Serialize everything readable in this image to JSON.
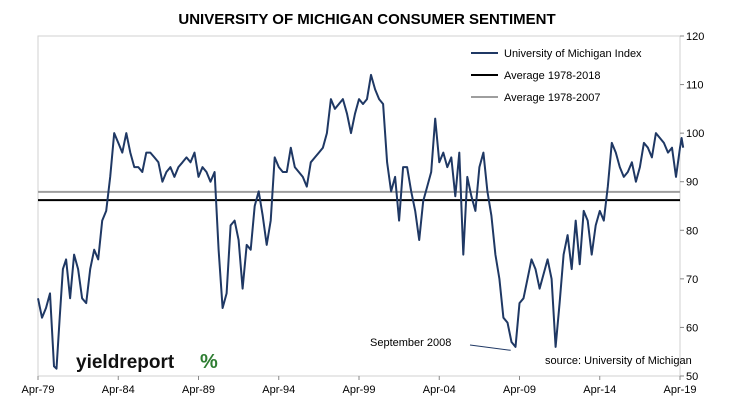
{
  "chart_data": {
    "type": "line",
    "title": "UNIVERSITY OF MICHIGAN CONSUMER SENTIMENT",
    "x_tick_labels": [
      "Apr-79",
      "Apr-84",
      "Apr-89",
      "Apr-94",
      "Apr-99",
      "Apr-04",
      "Apr-09",
      "Apr-14",
      "Apr-19"
    ],
    "x_tick_years": [
      1979.25,
      1984.25,
      1989.25,
      1994.25,
      1999.25,
      2004.25,
      2009.25,
      2014.25,
      2019.25
    ],
    "xlim": [
      1979.25,
      2019.25
    ],
    "ylim": [
      50,
      120
    ],
    "y_ticks": [
      50,
      60,
      70,
      80,
      90,
      100,
      110,
      120
    ],
    "y_axis_side": "right",
    "grid": false,
    "legend_placement": "top-right",
    "series": [
      {
        "name": "University of Michigan Index",
        "color": "#1f3864",
        "style": "line",
        "points": [
          [
            1979.25,
            66
          ],
          [
            1979.5,
            62
          ],
          [
            1979.75,
            64
          ],
          [
            1980.0,
            67
          ],
          [
            1980.25,
            52
          ],
          [
            1980.4,
            51.5
          ],
          [
            1980.6,
            62
          ],
          [
            1980.8,
            72
          ],
          [
            1981.0,
            74
          ],
          [
            1981.25,
            66
          ],
          [
            1981.5,
            75
          ],
          [
            1981.75,
            72
          ],
          [
            1982.0,
            66
          ],
          [
            1982.25,
            65
          ],
          [
            1982.5,
            72
          ],
          [
            1982.75,
            76
          ],
          [
            1983.0,
            74
          ],
          [
            1983.25,
            82
          ],
          [
            1983.5,
            84
          ],
          [
            1983.75,
            91
          ],
          [
            1984.0,
            100
          ],
          [
            1984.25,
            98
          ],
          [
            1984.5,
            96
          ],
          [
            1984.75,
            100
          ],
          [
            1985.0,
            96
          ],
          [
            1985.25,
            93
          ],
          [
            1985.5,
            93
          ],
          [
            1985.75,
            92
          ],
          [
            1986.0,
            96
          ],
          [
            1986.25,
            96
          ],
          [
            1986.5,
            95
          ],
          [
            1986.75,
            94
          ],
          [
            1987.0,
            90
          ],
          [
            1987.25,
            92
          ],
          [
            1987.5,
            93
          ],
          [
            1987.75,
            91
          ],
          [
            1988.0,
            93
          ],
          [
            1988.25,
            94
          ],
          [
            1988.5,
            95
          ],
          [
            1988.75,
            94
          ],
          [
            1989.0,
            96
          ],
          [
            1989.25,
            91
          ],
          [
            1989.5,
            93
          ],
          [
            1989.75,
            92
          ],
          [
            1990.0,
            90
          ],
          [
            1990.25,
            92
          ],
          [
            1990.5,
            76
          ],
          [
            1990.75,
            64
          ],
          [
            1991.0,
            67
          ],
          [
            1991.25,
            81
          ],
          [
            1991.5,
            82
          ],
          [
            1991.75,
            78
          ],
          [
            1992.0,
            68
          ],
          [
            1992.25,
            77
          ],
          [
            1992.5,
            76
          ],
          [
            1992.75,
            85
          ],
          [
            1993.0,
            88
          ],
          [
            1993.25,
            83
          ],
          [
            1993.5,
            77
          ],
          [
            1993.75,
            82
          ],
          [
            1994.0,
            95
          ],
          [
            1994.25,
            93
          ],
          [
            1994.5,
            92
          ],
          [
            1994.75,
            92
          ],
          [
            1995.0,
            97
          ],
          [
            1995.25,
            93
          ],
          [
            1995.5,
            92
          ],
          [
            1995.75,
            91
          ],
          [
            1996.0,
            89
          ],
          [
            1996.25,
            94
          ],
          [
            1996.5,
            95
          ],
          [
            1996.75,
            96
          ],
          [
            1997.0,
            97
          ],
          [
            1997.25,
            100
          ],
          [
            1997.5,
            107
          ],
          [
            1997.75,
            105
          ],
          [
            1998.0,
            106
          ],
          [
            1998.25,
            107
          ],
          [
            1998.5,
            104
          ],
          [
            1998.75,
            100
          ],
          [
            1999.0,
            104
          ],
          [
            1999.25,
            107
          ],
          [
            1999.5,
            106
          ],
          [
            1999.75,
            107
          ],
          [
            2000.0,
            112
          ],
          [
            2000.25,
            109
          ],
          [
            2000.5,
            107
          ],
          [
            2000.75,
            106
          ],
          [
            2001.0,
            94
          ],
          [
            2001.25,
            88
          ],
          [
            2001.5,
            91
          ],
          [
            2001.75,
            82
          ],
          [
            2002.0,
            93
          ],
          [
            2002.25,
            93
          ],
          [
            2002.5,
            88
          ],
          [
            2002.75,
            84
          ],
          [
            2003.0,
            78
          ],
          [
            2003.25,
            86
          ],
          [
            2003.5,
            89
          ],
          [
            2003.75,
            92
          ],
          [
            2004.0,
            103
          ],
          [
            2004.25,
            94
          ],
          [
            2004.5,
            96
          ],
          [
            2004.75,
            93
          ],
          [
            2005.0,
            95
          ],
          [
            2005.25,
            87
          ],
          [
            2005.5,
            96
          ],
          [
            2005.75,
            75
          ],
          [
            2006.0,
            91
          ],
          [
            2006.25,
            87
          ],
          [
            2006.5,
            84
          ],
          [
            2006.75,
            93
          ],
          [
            2007.0,
            96
          ],
          [
            2007.25,
            88
          ],
          [
            2007.5,
            83
          ],
          [
            2007.75,
            75
          ],
          [
            2008.0,
            70
          ],
          [
            2008.25,
            62
          ],
          [
            2008.5,
            61
          ],
          [
            2008.75,
            57
          ],
          [
            2009.0,
            56
          ],
          [
            2009.25,
            65
          ],
          [
            2009.5,
            66
          ],
          [
            2009.75,
            70
          ],
          [
            2010.0,
            74
          ],
          [
            2010.25,
            72
          ],
          [
            2010.5,
            68
          ],
          [
            2010.75,
            71
          ],
          [
            2011.0,
            74
          ],
          [
            2011.25,
            70
          ],
          [
            2011.5,
            56
          ],
          [
            2011.75,
            65
          ],
          [
            2012.0,
            75
          ],
          [
            2012.25,
            79
          ],
          [
            2012.5,
            72
          ],
          [
            2012.75,
            82
          ],
          [
            2013.0,
            73
          ],
          [
            2013.25,
            84
          ],
          [
            2013.5,
            82
          ],
          [
            2013.75,
            75
          ],
          [
            2014.0,
            81
          ],
          [
            2014.25,
            84
          ],
          [
            2014.5,
            82
          ],
          [
            2014.75,
            89
          ],
          [
            2015.0,
            98
          ],
          [
            2015.25,
            96
          ],
          [
            2015.5,
            93
          ],
          [
            2015.75,
            91
          ],
          [
            2016.0,
            92
          ],
          [
            2016.25,
            94
          ],
          [
            2016.5,
            90
          ],
          [
            2016.75,
            93
          ],
          [
            2017.0,
            98
          ],
          [
            2017.25,
            97
          ],
          [
            2017.5,
            95
          ],
          [
            2017.75,
            100
          ],
          [
            2018.0,
            99
          ],
          [
            2018.25,
            98
          ],
          [
            2018.5,
            96
          ],
          [
            2018.75,
            97
          ],
          [
            2019.0,
            91
          ],
          [
            2019.25,
            97
          ],
          [
            2019.35,
            99
          ],
          [
            2019.45,
            97
          ]
        ]
      },
      {
        "name": "Average 1978-2018",
        "color": "#000000",
        "style": "hline",
        "value": 86.2
      },
      {
        "name": "Average 1978-2007",
        "color": "#9e9e9e",
        "style": "hline",
        "value": 87.9
      }
    ],
    "annotations": [
      {
        "text": "September  2008",
        "point": [
          2008.7,
          55.3
        ]
      },
      {
        "text": "source: University of Michigan"
      }
    ]
  },
  "logo": {
    "text": "yieldreport",
    "symbol": "%"
  }
}
